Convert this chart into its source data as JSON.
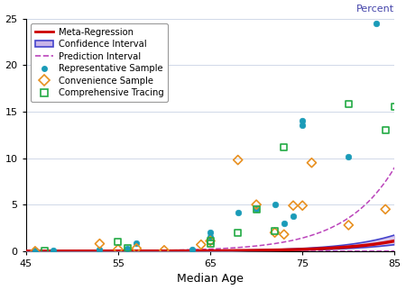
{
  "title": "",
  "xlabel": "Median Age",
  "ylabel": "Percent",
  "xlim": [
    45,
    85
  ],
  "ylim": [
    0,
    25
  ],
  "xticks": [
    45,
    55,
    65,
    75,
    85
  ],
  "yticks": [
    0,
    5,
    10,
    15,
    20,
    25
  ],
  "regression_color": "#cc0000",
  "ci_fill_color": "#c8b4e8",
  "ci_edge_color": "#4444cc",
  "pred_color": "#bb44bb",
  "rep_color": "#1a9bb8",
  "conv_color": "#e89020",
  "comp_color": "#22aa44",
  "ylabel_color": "#4444aa",
  "rep_points": [
    [
      46,
      0.1
    ],
    [
      48,
      0.05
    ],
    [
      53,
      0.2
    ],
    [
      56,
      0.3
    ],
    [
      57,
      0.85
    ],
    [
      63,
      0.2
    ],
    [
      65,
      1.5
    ],
    [
      65,
      2.0
    ],
    [
      68,
      4.1
    ],
    [
      70,
      4.5
    ],
    [
      72,
      5.0
    ],
    [
      73,
      3.0
    ],
    [
      74,
      3.8
    ],
    [
      75,
      14.0
    ],
    [
      75,
      13.5
    ],
    [
      80,
      10.1
    ],
    [
      83,
      24.5
    ]
  ],
  "conv_points": [
    [
      46,
      0.0
    ],
    [
      53,
      0.8
    ],
    [
      55,
      0.2
    ],
    [
      57,
      0.3
    ],
    [
      60,
      0.1
    ],
    [
      64,
      0.7
    ],
    [
      65,
      1.1
    ],
    [
      68,
      9.8
    ],
    [
      70,
      5.0
    ],
    [
      72,
      2.0
    ],
    [
      73,
      1.8
    ],
    [
      74,
      4.9
    ],
    [
      75,
      4.9
    ],
    [
      76,
      9.5
    ],
    [
      80,
      2.8
    ],
    [
      84,
      4.5
    ]
  ],
  "comp_points": [
    [
      47,
      0.0
    ],
    [
      55,
      1.0
    ],
    [
      56,
      0.3
    ],
    [
      65,
      0.8
    ],
    [
      65,
      1.1
    ],
    [
      68,
      2.0
    ],
    [
      70,
      4.5
    ],
    [
      72,
      2.2
    ],
    [
      73,
      11.2
    ],
    [
      80,
      15.8
    ],
    [
      84,
      13.0
    ],
    [
      85,
      15.5
    ]
  ],
  "reg_params": [
    0.001,
    0.175
  ],
  "ci_upper_params": [
    0.0014,
    0.178
  ],
  "ci_lower_params": [
    0.00072,
    0.172
  ],
  "pi_upper_params": [
    0.0055,
    0.185
  ],
  "pi_lower_params": [
    0.00015,
    0.12
  ]
}
